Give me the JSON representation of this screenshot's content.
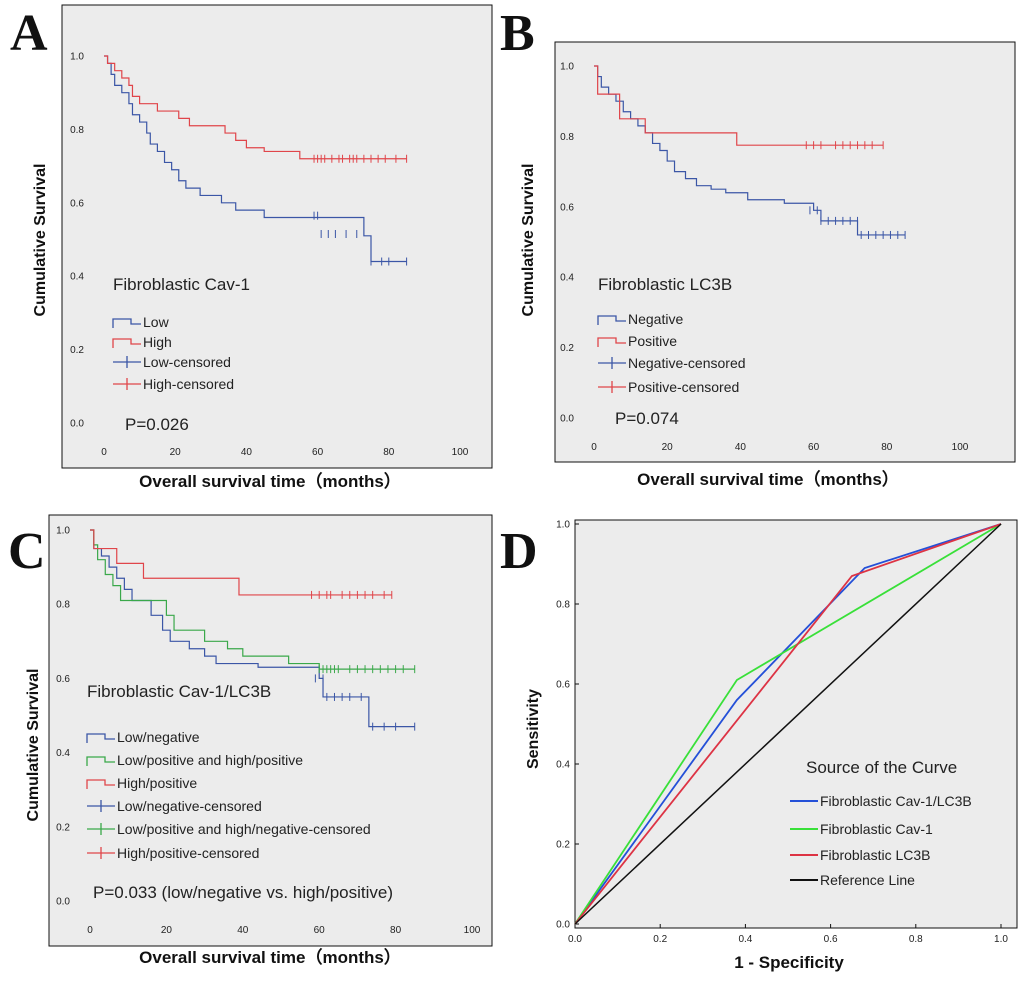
{
  "figure": {
    "letters": [
      "A",
      "B",
      "C",
      "D"
    ]
  },
  "colors": {
    "blue": "#3b56a6",
    "red": "#e0454a",
    "green": "#3aa84a",
    "roc_blue": "#2450d8",
    "roc_green": "#39e039",
    "roc_red": "#dd3344",
    "black": "#111111",
    "plot_bg": "#ececec"
  },
  "chart_data": [
    {
      "type": "line",
      "subtype": "kaplan-meier",
      "panel": "A",
      "xlabel": "Overall survival time（months）",
      "ylabel": "Cumulative Survival",
      "xlim": [
        0,
        100
      ],
      "ylim": [
        0,
        1
      ],
      "xticks": [
        "0",
        "20",
        "40",
        "60",
        "80",
        "100"
      ],
      "yticks": [
        "0.0",
        "0.2",
        "0.4",
        "0.6",
        "0.8",
        "1.0"
      ],
      "legend_title": "Fibroblastic Cav-1",
      "legend": [
        "Low",
        "High",
        "Low-censored",
        "High-censored"
      ],
      "pvalue": "P=0.026",
      "series": [
        {
          "name": "Low",
          "color": "blue",
          "steps": [
            [
              0,
              1.0
            ],
            [
              1,
              0.98
            ],
            [
              2,
              0.95
            ],
            [
              3,
              0.92
            ],
            [
              5,
              0.9
            ],
            [
              7,
              0.87
            ],
            [
              8,
              0.84
            ],
            [
              10,
              0.82
            ],
            [
              12,
              0.79
            ],
            [
              13,
              0.76
            ],
            [
              15,
              0.74
            ],
            [
              17,
              0.71
            ],
            [
              19,
              0.69
            ],
            [
              21,
              0.66
            ],
            [
              23,
              0.64
            ],
            [
              27,
              0.62
            ],
            [
              33,
              0.6
            ],
            [
              37,
              0.58
            ],
            [
              45,
              0.56
            ],
            [
              73,
              0.51
            ],
            [
              75,
              0.44
            ]
          ],
          "end": 85,
          "censored": [
            [
              59,
              0.565
            ],
            [
              60,
              0.565
            ],
            [
              61,
              0.515
            ],
            [
              63,
              0.515
            ],
            [
              65,
              0.515
            ],
            [
              68,
              0.515
            ],
            [
              71,
              0.515
            ],
            [
              75,
              0.44
            ],
            [
              78,
              0.44
            ],
            [
              80,
              0.44
            ],
            [
              85,
              0.44
            ]
          ]
        },
        {
          "name": "High",
          "color": "red",
          "steps": [
            [
              0,
              1.0
            ],
            [
              1,
              0.98
            ],
            [
              3,
              0.96
            ],
            [
              5,
              0.94
            ],
            [
              7,
              0.92
            ],
            [
              8,
              0.89
            ],
            [
              10,
              0.87
            ],
            [
              15,
              0.85
            ],
            [
              21,
              0.83
            ],
            [
              24,
              0.81
            ],
            [
              34,
              0.79
            ],
            [
              37,
              0.77
            ],
            [
              40,
              0.75
            ],
            [
              45,
              0.74
            ],
            [
              55,
              0.72
            ]
          ],
          "end": 85,
          "censored": [
            [
              59,
              0.72
            ],
            [
              60,
              0.72
            ],
            [
              61,
              0.72
            ],
            [
              62,
              0.72
            ],
            [
              64,
              0.72
            ],
            [
              66,
              0.72
            ],
            [
              67,
              0.72
            ],
            [
              69,
              0.72
            ],
            [
              70,
              0.72
            ],
            [
              71,
              0.72
            ],
            [
              73,
              0.72
            ],
            [
              75,
              0.72
            ],
            [
              77,
              0.72
            ],
            [
              79,
              0.72
            ],
            [
              82,
              0.72
            ],
            [
              85,
              0.72
            ]
          ]
        }
      ]
    },
    {
      "type": "line",
      "subtype": "kaplan-meier",
      "panel": "B",
      "xlabel": "Overall survival time（months）",
      "ylabel": "Cumulative Survival",
      "xlim": [
        0,
        100
      ],
      "ylim": [
        0,
        1
      ],
      "xticks": [
        "0",
        "20",
        "40",
        "60",
        "80",
        "100"
      ],
      "yticks": [
        "0.0",
        "0.2",
        "0.4",
        "0.6",
        "0.8",
        "1.0"
      ],
      "legend_title": "Fibroblastic LC3B",
      "legend": [
        "Negative",
        "Positive",
        "Negative-censored",
        "Positive-censored"
      ],
      "pvalue": "P=0.074",
      "series": [
        {
          "name": "Negative",
          "color": "blue",
          "steps": [
            [
              0,
              1.0
            ],
            [
              1,
              0.97
            ],
            [
              2,
              0.94
            ],
            [
              4,
              0.92
            ],
            [
              6,
              0.9
            ],
            [
              8,
              0.87
            ],
            [
              10,
              0.85
            ],
            [
              12,
              0.83
            ],
            [
              14,
              0.81
            ],
            [
              16,
              0.78
            ],
            [
              18,
              0.76
            ],
            [
              20,
              0.73
            ],
            [
              22,
              0.7
            ],
            [
              25,
              0.68
            ],
            [
              28,
              0.66
            ],
            [
              32,
              0.65
            ],
            [
              36,
              0.64
            ],
            [
              42,
              0.62
            ],
            [
              52,
              0.61
            ],
            [
              60,
              0.59
            ],
            [
              62,
              0.56
            ],
            [
              72,
              0.52
            ]
          ],
          "end": 85,
          "censored": [
            [
              59,
              0.59
            ],
            [
              61,
              0.59
            ],
            [
              62,
              0.56
            ],
            [
              64,
              0.56
            ],
            [
              66,
              0.56
            ],
            [
              68,
              0.56
            ],
            [
              70,
              0.56
            ],
            [
              72,
              0.56
            ],
            [
              73,
              0.52
            ],
            [
              75,
              0.52
            ],
            [
              77,
              0.52
            ],
            [
              79,
              0.52
            ],
            [
              81,
              0.52
            ],
            [
              83,
              0.52
            ],
            [
              85,
              0.52
            ]
          ]
        },
        {
          "name": "Positive",
          "color": "red",
          "steps": [
            [
              0,
              1.0
            ],
            [
              1,
              0.92
            ],
            [
              7,
              0.85
            ],
            [
              14,
              0.81
            ],
            [
              39,
              0.775
            ]
          ],
          "end": 79,
          "censored": [
            [
              58,
              0.775
            ],
            [
              60,
              0.775
            ],
            [
              62,
              0.775
            ],
            [
              66,
              0.775
            ],
            [
              68,
              0.775
            ],
            [
              70,
              0.775
            ],
            [
              72,
              0.775
            ],
            [
              74,
              0.775
            ],
            [
              76,
              0.775
            ],
            [
              79,
              0.775
            ]
          ]
        }
      ]
    },
    {
      "type": "line",
      "subtype": "kaplan-meier",
      "panel": "C",
      "xlabel": "Overall survival time（months）",
      "ylabel": "Cumulative Survival",
      "xlim": [
        0,
        100
      ],
      "ylim": [
        0,
        1
      ],
      "xticks": [
        "0",
        "20",
        "40",
        "60",
        "80",
        "100"
      ],
      "yticks": [
        "0.0",
        "0.2",
        "0.4",
        "0.6",
        "0.8",
        "1.0"
      ],
      "legend_title": "Fibroblastic Cav-1/LC3B",
      "legend": [
        "Low/negative",
        "Low/positive and high/positive",
        "High/positive",
        "Low/negative-censored",
        "Low/positive and high/negative-censored",
        "High/positive-censored"
      ],
      "pvalue": "P=0.033 (low/negative vs. high/positive)",
      "series": [
        {
          "name": "Low/negative",
          "color": "blue",
          "steps": [
            [
              0,
              1.0
            ],
            [
              1,
              0.95
            ],
            [
              3,
              0.93
            ],
            [
              5,
              0.9
            ],
            [
              7,
              0.87
            ],
            [
              9,
              0.84
            ],
            [
              11,
              0.81
            ],
            [
              16,
              0.77
            ],
            [
              19,
              0.73
            ],
            [
              21,
              0.7
            ],
            [
              26,
              0.68
            ],
            [
              30,
              0.66
            ],
            [
              33,
              0.64
            ],
            [
              44,
              0.63
            ],
            [
              60,
              0.6
            ],
            [
              61,
              0.55
            ],
            [
              73,
              0.47
            ]
          ],
          "end": 85,
          "censored": [
            [
              59,
              0.6
            ],
            [
              61,
              0.6
            ],
            [
              62,
              0.55
            ],
            [
              64,
              0.55
            ],
            [
              66,
              0.55
            ],
            [
              68,
              0.55
            ],
            [
              71,
              0.55
            ],
            [
              74,
              0.47
            ],
            [
              77,
              0.47
            ],
            [
              80,
              0.47
            ],
            [
              85,
              0.47
            ]
          ]
        },
        {
          "name": "Low/positive and high/positive",
          "color": "green",
          "steps": [
            [
              0,
              1.0
            ],
            [
              1,
              0.96
            ],
            [
              2,
              0.92
            ],
            [
              4,
              0.88
            ],
            [
              6,
              0.85
            ],
            [
              8,
              0.81
            ],
            [
              20,
              0.77
            ],
            [
              22,
              0.73
            ],
            [
              30,
              0.7
            ],
            [
              36,
              0.68
            ],
            [
              40,
              0.66
            ],
            [
              52,
              0.64
            ],
            [
              60,
              0.625
            ]
          ],
          "end": 85,
          "censored": [
            [
              60,
              0.625
            ],
            [
              61,
              0.625
            ],
            [
              62,
              0.625
            ],
            [
              63,
              0.625
            ],
            [
              64,
              0.625
            ],
            [
              65,
              0.625
            ],
            [
              68,
              0.625
            ],
            [
              70,
              0.625
            ],
            [
              72,
              0.625
            ],
            [
              74,
              0.625
            ],
            [
              76,
              0.625
            ],
            [
              78,
              0.625
            ],
            [
              80,
              0.625
            ],
            [
              82,
              0.625
            ],
            [
              85,
              0.625
            ]
          ]
        },
        {
          "name": "High/positive",
          "color": "red",
          "steps": [
            [
              0,
              1.0
            ],
            [
              1,
              0.95
            ],
            [
              7,
              0.91
            ],
            [
              14,
              0.87
            ],
            [
              39,
              0.825
            ]
          ],
          "end": 79,
          "censored": [
            [
              58,
              0.825
            ],
            [
              60,
              0.825
            ],
            [
              62,
              0.825
            ],
            [
              63,
              0.825
            ],
            [
              66,
              0.825
            ],
            [
              68,
              0.825
            ],
            [
              70,
              0.825
            ],
            [
              72,
              0.825
            ],
            [
              74,
              0.825
            ],
            [
              77,
              0.825
            ],
            [
              79,
              0.825
            ]
          ]
        }
      ]
    },
    {
      "type": "line",
      "subtype": "roc",
      "panel": "D",
      "xlabel": "1 - Specificity",
      "ylabel": "Sensitivity",
      "xlim": [
        0,
        1
      ],
      "ylim": [
        0,
        1
      ],
      "xticks": [
        "0.0",
        "0.2",
        "0.4",
        "0.6",
        "0.8",
        "1.0"
      ],
      "yticks": [
        "0.0",
        "0.2",
        "0.4",
        "0.6",
        "0.8",
        "1.0"
      ],
      "legend_title": "Source of the Curve",
      "legend": [
        "Fibroblastic Cav-1/LC3B",
        "Fibroblastic  Cav-1",
        "Fibroblastic LC3B",
        "Reference Line"
      ],
      "series": [
        {
          "name": "Fibroblastic Cav-1/LC3B",
          "color": "roc_blue",
          "x": [
            0,
            0.38,
            0.68,
            1.0
          ],
          "y": [
            0,
            0.56,
            0.89,
            1.0
          ]
        },
        {
          "name": "Fibroblastic  Cav-1",
          "color": "roc_green",
          "x": [
            0,
            0.38,
            1.0
          ],
          "y": [
            0,
            0.61,
            1.0
          ]
        },
        {
          "name": "Fibroblastic LC3B",
          "color": "roc_red",
          "x": [
            0,
            0.65,
            1.0
          ],
          "y": [
            0,
            0.87,
            1.0
          ]
        },
        {
          "name": "Reference Line",
          "color": "black",
          "x": [
            0,
            1.0
          ],
          "y": [
            0,
            1.0
          ]
        }
      ]
    }
  ]
}
